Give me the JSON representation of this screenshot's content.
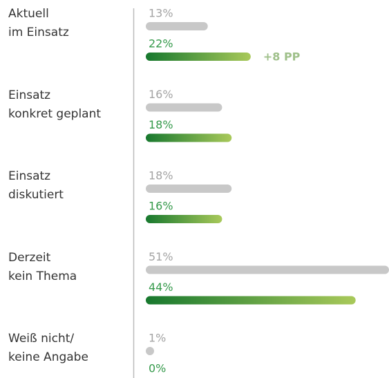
{
  "chart_data": {
    "type": "grouped-bar",
    "categories": [
      "Aktuell\nim Einsatz",
      "Einsatz\nkonkret geplant",
      "Einsatz\ndiskutiert",
      "Derzeit\nkein Thema",
      "Weiß nicht/\nkeine Angabe"
    ],
    "series": [
      {
        "color": "#c8c8c8",
        "label_color": "#a3a3a3",
        "values": [
          13,
          16,
          18,
          51,
          1
        ],
        "value_labels": [
          "13%",
          "16%",
          "18%",
          "51%",
          "1%"
        ]
      },
      {
        "color": [
          "#17782e",
          "#a9c95a"
        ],
        "label_color": "#34994a",
        "values": [
          22,
          18,
          16,
          44,
          0
        ],
        "value_labels": [
          "22%",
          "18%",
          "16%",
          "44%",
          "0%"
        ]
      }
    ],
    "annotations": [
      {
        "text": "+8 PP",
        "category": 0,
        "series": 1,
        "color": "#9fc08a"
      }
    ]
  }
}
